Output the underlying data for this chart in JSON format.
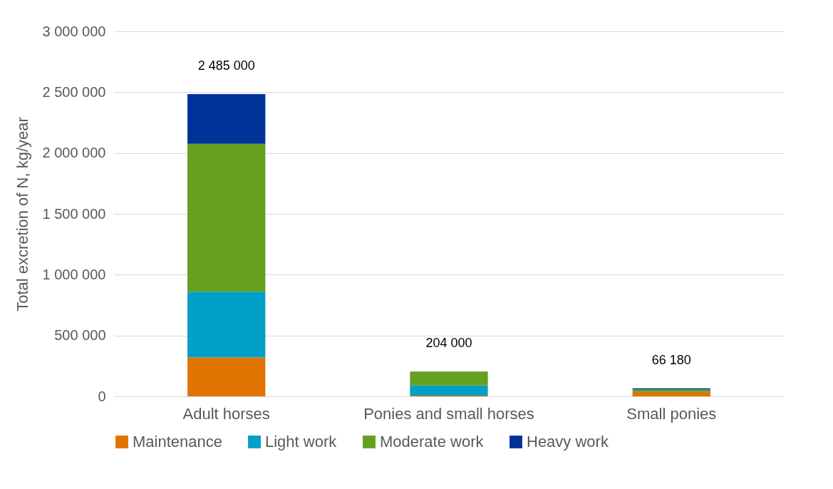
{
  "chart_data": {
    "type": "bar",
    "stacked": true,
    "ylabel": "Total excretion of N, kg/year",
    "categories": [
      "Adult horses",
      "Ponies and small horses",
      "Small ponies"
    ],
    "series": [
      {
        "name": "Maintenance",
        "color": "#e07400",
        "values": [
          320000,
          6000,
          36000
        ]
      },
      {
        "name": "Light work",
        "color": "#00a0c8",
        "values": [
          540000,
          84000,
          5000
        ]
      },
      {
        "name": "Moderate work",
        "color": "#65a01e",
        "values": [
          1215000,
          114000,
          18000
        ]
      },
      {
        "name": "Heavy work",
        "color": "#00339a",
        "values": [
          410000,
          0,
          7180
        ]
      }
    ],
    "totals": [
      "2 485 000",
      "204 000",
      "66 180"
    ],
    "ylim": [
      0,
      3000000
    ],
    "yticks": [
      {
        "value": 0,
        "label": "0"
      },
      {
        "value": 500000,
        "label": "500 000"
      },
      {
        "value": 1000000,
        "label": "1 000 000"
      },
      {
        "value": 1500000,
        "label": "1 500 000"
      },
      {
        "value": 2000000,
        "label": "2 000 000"
      },
      {
        "value": 2500000,
        "label": "2 500 000"
      },
      {
        "value": 3000000,
        "label": "3 000 000"
      }
    ],
    "grid": "y",
    "legend": "bottom"
  }
}
